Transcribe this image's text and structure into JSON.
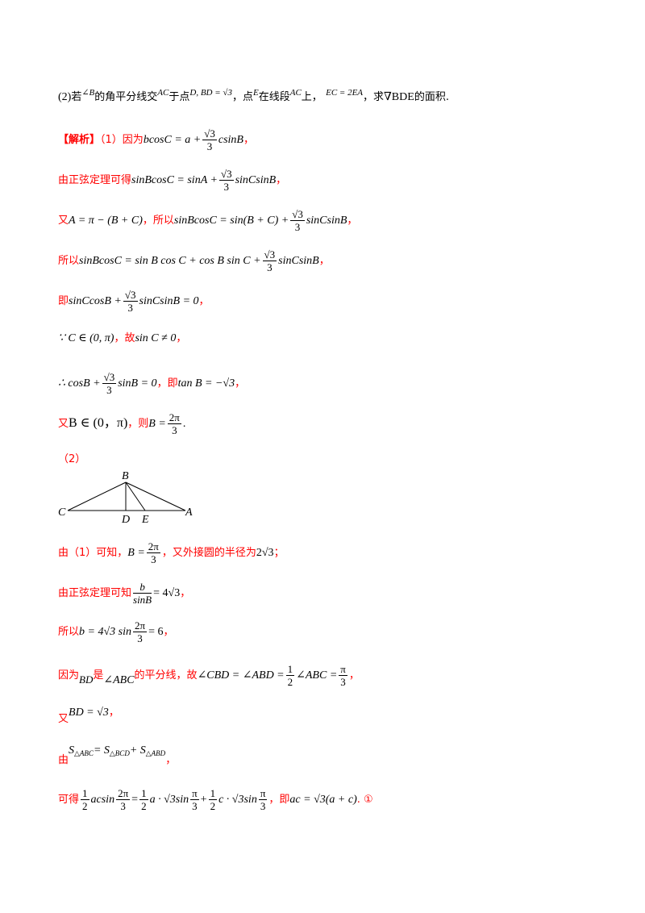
{
  "problem": {
    "part_label": "(2)",
    "t1": "若",
    "m1": "∠B",
    "t2": "的角平分线交",
    "m2": "AC",
    "t3": "于点",
    "m3": "D, BD = √3",
    "t4": "，点",
    "m4": "E",
    "t5": "在线段",
    "m5": "AC",
    "t6": "上，",
    "m6": "EC = 2EA",
    "t7": "，求",
    "m7": "∇BDE",
    "t8": "的面积."
  },
  "solution": {
    "tag": "【解析】",
    "p1_label": "（1）",
    "l1_text": "因为",
    "l1_math_a": "bcosC = a +",
    "l1_frac_num": "√3",
    "l1_frac_den": "3",
    "l1_math_b": "csinB",
    "l1_end": "，",
    "l2_text": "由正弦定理可得",
    "l2_math_a": "sinBcosC = sinA +",
    "l2_frac_num": "√3",
    "l2_frac_den": "3",
    "l2_math_b": "sinCsinB",
    "l2_end": "，",
    "l3_text": "又",
    "l3_math_a": "A = π − (B + C)",
    "l3_mid": "，所以",
    "l3_math_b": "sinBcosC = sin(B + C) +",
    "l3_frac_num": "√3",
    "l3_frac_den": "3",
    "l3_math_c": "sinCsinB",
    "l3_end": "，",
    "l4_text": "所以",
    "l4_math_a": "sinBcosC = sin B cos C + cos B sin C +",
    "l4_frac_num": "√3",
    "l4_frac_den": "3",
    "l4_math_b": "sinCsinB",
    "l4_end": "，",
    "l5_text": "即",
    "l5_math_a": "sinCcosB +",
    "l5_frac_num": "√3",
    "l5_frac_den": "3",
    "l5_math_b": "sinCsinB = 0",
    "l5_end": "，",
    "l6_math_a": "∵ C ∈ (0, π)",
    "l6_mid": "，故",
    "l6_math_b": "sin C ≠ 0",
    "l6_end": "，",
    "l7_math_a": "∴ cosB +",
    "l7_frac_num": "√3",
    "l7_frac_den": "3",
    "l7_math_b": "sinB = 0",
    "l7_mid": "，即",
    "l7_math_c": "tan B = −√3",
    "l7_end": "，",
    "l8_text": "又",
    "l8_math_a": "B ∈ (0，π)",
    "l8_mid": "，则",
    "l8_math_b": "B =",
    "l8_frac_num": "2π",
    "l8_frac_den": "3",
    "l8_end": ".",
    "p2_label": "（2）",
    "l9_text": "由（1）可知，",
    "l9_math_a": "B =",
    "l9_frac_num": "2π",
    "l9_frac_den": "3",
    "l9_mid": "，又外接圆的半径为",
    "l9_math_b": "2√3",
    "l9_end": "；",
    "l10_text": "由正弦定理可知",
    "l10_frac_num": "b",
    "l10_frac_den": "sinB",
    "l10_math_a": "= 4√3",
    "l10_end": "，",
    "l11_text": "所以",
    "l11_math_a": "b = 4√3 sin",
    "l11_frac_num": "2π",
    "l11_frac_den": "3",
    "l11_math_b": "= 6",
    "l11_end": "，",
    "l12_text": "因为",
    "l12_math_a": "BD",
    "l12_mid1": "是",
    "l12_math_b": "∠ABC",
    "l12_mid2": "的平分线，故",
    "l12_math_c": "∠CBD = ∠ABD =",
    "l12_frac1_num": "1",
    "l12_frac1_den": "2",
    "l12_math_d": "∠ABC =",
    "l12_frac2_num": "π",
    "l12_frac2_den": "3",
    "l12_end": "，",
    "l13_text": "又",
    "l13_math_a": "BD = √3",
    "l13_end": "，",
    "l14_text": "由",
    "l14_math_a": "S",
    "l14_sub_a": "△ABC",
    "l14_math_b": "= S",
    "l14_sub_b": "△BCD",
    "l14_math_c": "+ S",
    "l14_sub_c": "△ABD",
    "l14_end": "，",
    "l15_text": "可得",
    "l15_frac1_num": "1",
    "l15_frac1_den": "2",
    "l15_math_a": "acsin",
    "l15_frac2_num": "2π",
    "l15_frac2_den": "3",
    "l15_math_b": "=",
    "l15_frac3_num": "1",
    "l15_frac3_den": "2",
    "l15_math_c": "a · √3sin",
    "l15_frac4_num": "π",
    "l15_frac4_den": "3",
    "l15_math_d": "+",
    "l15_frac5_num": "1",
    "l15_frac5_den": "2",
    "l15_math_e": "c · √3sin",
    "l15_frac6_num": "π",
    "l15_frac6_den": "3",
    "l15_mid": "，即",
    "l15_math_f": "ac = √3(a + c)",
    "l15_end": ".  ①"
  },
  "diagram": {
    "label_B": "B",
    "label_C": "C",
    "label_D": "D",
    "label_E": "E",
    "label_A": "A"
  }
}
